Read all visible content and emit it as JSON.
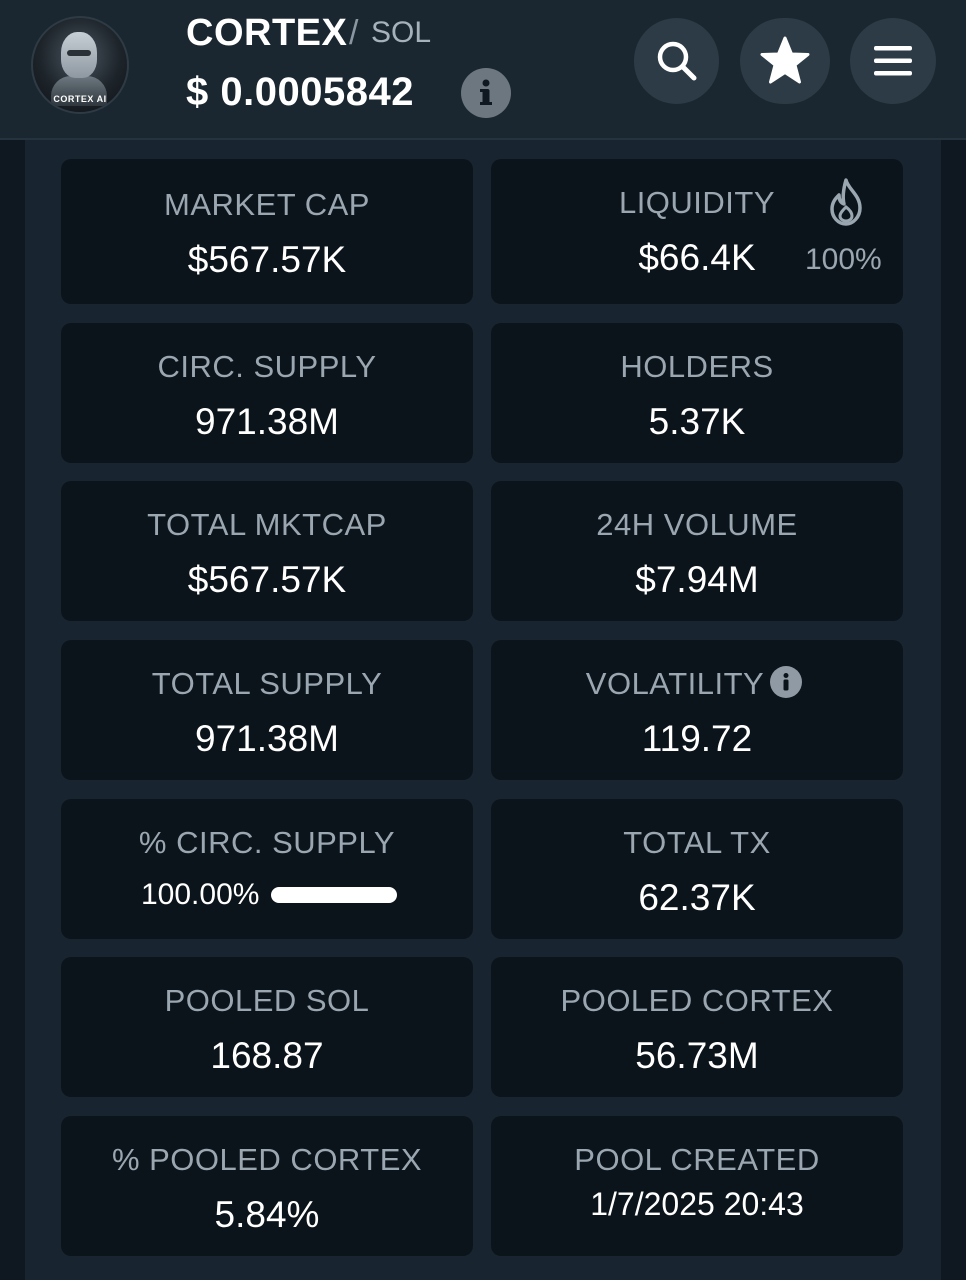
{
  "header": {
    "logo_text": "CORTEX AI",
    "token_name": "CORTEX",
    "separator": "/",
    "pair": "SOL",
    "price": "$ 0.0005842",
    "buttons": [
      {
        "icon": "search-icon"
      },
      {
        "icon": "star-icon"
      },
      {
        "icon": "menu-icon"
      }
    ]
  },
  "stats": {
    "market_cap": {
      "label": "MARKET CAP",
      "value": "$567.57K"
    },
    "liquidity": {
      "label": "LIQUIDITY",
      "value": "$66.4K",
      "locked_pct": "100%",
      "icon": "flame-icon"
    },
    "circ_supply": {
      "label": "CIRC. SUPPLY",
      "value": "971.38M"
    },
    "holders": {
      "label": "HOLDERS",
      "value": "5.37K"
    },
    "total_mktcap": {
      "label": "TOTAL MKTCAP",
      "value": "$567.57K"
    },
    "volume_24h": {
      "label": "24H VOLUME",
      "value": "$7.94M"
    },
    "total_supply": {
      "label": "TOTAL SUPPLY",
      "value": "971.38M"
    },
    "volatility": {
      "label": "VOLATILITY",
      "value": "119.72"
    },
    "pct_circ_supply": {
      "label": "% CIRC. SUPPLY",
      "value": "100.00%",
      "fraction": 1.0
    },
    "total_tx": {
      "label": "TOTAL TX",
      "value": "62.37K"
    },
    "pooled_sol": {
      "label": "POOLED SOL",
      "value": "168.87"
    },
    "pooled_cortex": {
      "label": "POOLED CORTEX",
      "value": "56.73M"
    },
    "pct_pooled_cortex": {
      "label": "% POOLED CORTEX",
      "value": "5.84%"
    },
    "pool_created": {
      "label": "POOL CREATED",
      "value": "1/7/2025 20:43"
    }
  },
  "colors": {
    "header_bg": "#1a2730",
    "card_bg": "#0c141b",
    "label": "#9aa6b0",
    "value": "#ffffff"
  }
}
